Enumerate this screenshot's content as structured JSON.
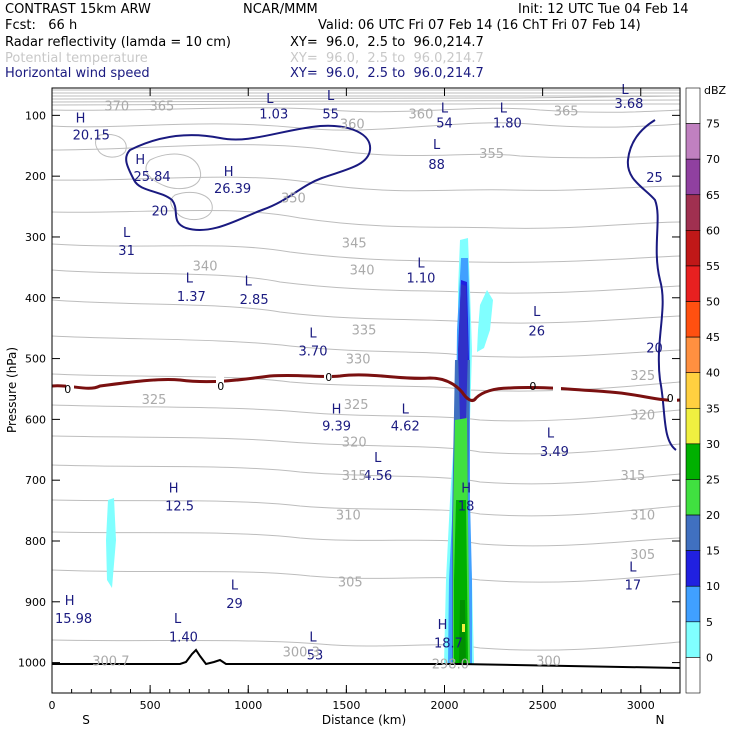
{
  "header": {
    "model": "CONTRAST 15km ARW",
    "org": "NCAR/MMM",
    "init": "Init: 12 UTC Tue 04 Feb 14",
    "fcst": "Fcst:   66 h",
    "valid": "Valid: 06 UTC Fri 07 Feb 14 (16 ChT Fri 07 Feb 14)",
    "field1": "Radar reflectivity (lamda = 10 cm)",
    "field1_xy": "XY=  96.0,  2.5 to  96.0,214.7",
    "field2": "Potential temperature",
    "field2_xy": "XY=  96.0,  2.5 to  96.0,214.7",
    "field3": "Horizontal wind speed",
    "field3_xy": "XY=  96.0,  2.5 to  96.0,214.7"
  },
  "colors": {
    "wind": "#1a1a80",
    "theta": "#aaaaaa",
    "freezing": "#7a1010",
    "terrain": "#000000"
  },
  "chart_data": {
    "type": "cross-section",
    "xlabel": "Distance (km)",
    "ylabel": "Pressure (hPa)",
    "xlim": [
      0,
      3200
    ],
    "ylim": [
      1050,
      55
    ],
    "x_ticks": [
      "0",
      "500",
      "1000",
      "1500",
      "2000",
      "2500",
      "3000"
    ],
    "y_ticks": [
      "100",
      "200",
      "300",
      "400",
      "500",
      "600",
      "700",
      "800",
      "900",
      "1000"
    ],
    "x_left": "S",
    "x_right": "N",
    "colorbar": {
      "unit": "dBZ",
      "levels": [
        "75",
        "70",
        "65",
        "60",
        "55",
        "50",
        "45",
        "40",
        "35",
        "30",
        "25",
        "20",
        "15",
        "10",
        "5",
        "0"
      ],
      "colors": [
        "#ffffff",
        "#c080c0",
        "#9040a0",
        "#a03050",
        "#c01818",
        "#e82020",
        "#ff5010",
        "#ff9040",
        "#ffd040",
        "#f0f040",
        "#00b000",
        "#40e040",
        "#4070c0",
        "#2020e0",
        "#40a0ff",
        "#80ffff",
        "#ffffff"
      ]
    },
    "wind_labels": [
      {
        "t": "H",
        "x": 145,
        "p": 112
      },
      {
        "t": "20.15",
        "x": 200,
        "p": 140
      },
      {
        "t": "L",
        "x": 1110,
        "p": 80
      },
      {
        "t": "1.03",
        "x": 1130,
        "p": 105
      },
      {
        "t": "L",
        "x": 1420,
        "p": 75
      },
      {
        "t": "55",
        "x": 1420,
        "p": 105
      },
      {
        "t": "L",
        "x": 2000,
        "p": 95
      },
      {
        "t": "54",
        "x": 2000,
        "p": 120
      },
      {
        "t": "L",
        "x": 2300,
        "p": 95
      },
      {
        "t": "1.80",
        "x": 2320,
        "p": 120
      },
      {
        "t": "L",
        "x": 2920,
        "p": 65
      },
      {
        "t": "3.68",
        "x": 2940,
        "p": 88
      },
      {
        "t": "L",
        "x": 1960,
        "p": 155
      },
      {
        "t": "88",
        "x": 1960,
        "p": 188
      },
      {
        "t": "H",
        "x": 450,
        "p": 180
      },
      {
        "t": "25.84",
        "x": 510,
        "p": 208
      },
      {
        "t": "H",
        "x": 900,
        "p": 200
      },
      {
        "t": "26.39",
        "x": 920,
        "p": 228
      },
      {
        "t": "20",
        "x": 550,
        "p": 265
      },
      {
        "t": "25",
        "x": 3070,
        "p": 210
      },
      {
        "t": "L",
        "x": 380,
        "p": 300
      },
      {
        "t": "31",
        "x": 380,
        "p": 330
      },
      {
        "t": "L",
        "x": 1880,
        "p": 350
      },
      {
        "t": "1.10",
        "x": 1880,
        "p": 375
      },
      {
        "t": "L",
        "x": 700,
        "p": 375
      },
      {
        "t": "1.37",
        "x": 710,
        "p": 405
      },
      {
        "t": "L",
        "x": 1000,
        "p": 380
      },
      {
        "t": "2.85",
        "x": 1030,
        "p": 410
      },
      {
        "t": "L",
        "x": 2470,
        "p": 430
      },
      {
        "t": "26",
        "x": 2470,
        "p": 462
      },
      {
        "t": "L",
        "x": 1330,
        "p": 465
      },
      {
        "t": "3.70",
        "x": 1330,
        "p": 495
      },
      {
        "t": "20",
        "x": 3070,
        "p": 490
      },
      {
        "t": "H",
        "x": 1450,
        "p": 590
      },
      {
        "t": "9.39",
        "x": 1450,
        "p": 618
      },
      {
        "t": "L",
        "x": 1800,
        "p": 590
      },
      {
        "t": "4.62",
        "x": 1800,
        "p": 618
      },
      {
        "t": "L",
        "x": 2540,
        "p": 630
      },
      {
        "t": "3.49",
        "x": 2560,
        "p": 660
      },
      {
        "t": "L",
        "x": 1660,
        "p": 670
      },
      {
        "t": "4.56",
        "x": 1660,
        "p": 700
      },
      {
        "t": "H",
        "x": 2110,
        "p": 720
      },
      {
        "t": "18",
        "x": 2110,
        "p": 750
      },
      {
        "t": "H",
        "x": 620,
        "p": 720
      },
      {
        "t": "12.5",
        "x": 650,
        "p": 750
      },
      {
        "t": "L",
        "x": 2960,
        "p": 850
      },
      {
        "t": "17",
        "x": 2960,
        "p": 880
      },
      {
        "t": "L",
        "x": 930,
        "p": 880
      },
      {
        "t": "29",
        "x": 930,
        "p": 910
      },
      {
        "t": "H",
        "x": 90,
        "p": 905
      },
      {
        "t": "15.98",
        "x": 110,
        "p": 935
      },
      {
        "t": "L",
        "x": 640,
        "p": 935
      },
      {
        "t": "1.40",
        "x": 670,
        "p": 965
      },
      {
        "t": "L",
        "x": 1330,
        "p": 965
      },
      {
        "t": "53",
        "x": 1340,
        "p": 995
      },
      {
        "t": "H",
        "x": 1990,
        "p": 945
      },
      {
        "t": "18.7",
        "x": 2020,
        "p": 975
      }
    ],
    "theta_labels": [
      {
        "t": "370",
        "x": 330,
        "p": 92
      },
      {
        "t": "365",
        "x": 560,
        "p": 92
      },
      {
        "t": "360",
        "x": 1530,
        "p": 122
      },
      {
        "t": "360",
        "x": 1880,
        "p": 105
      },
      {
        "t": "365",
        "x": 2620,
        "p": 100
      },
      {
        "t": "355",
        "x": 2240,
        "p": 170
      },
      {
        "t": "350",
        "x": 1230,
        "p": 243
      },
      {
        "t": "345",
        "x": 1540,
        "p": 317
      },
      {
        "t": "340",
        "x": 780,
        "p": 355
      },
      {
        "t": "340",
        "x": 1580,
        "p": 362
      },
      {
        "t": "335",
        "x": 1590,
        "p": 460
      },
      {
        "t": "330",
        "x": 1560,
        "p": 508
      },
      {
        "t": "325",
        "x": 520,
        "p": 575
      },
      {
        "t": "325",
        "x": 1550,
        "p": 583
      },
      {
        "t": "325",
        "x": 3010,
        "p": 535
      },
      {
        "t": "320",
        "x": 1540,
        "p": 645
      },
      {
        "t": "320",
        "x": 3010,
        "p": 600
      },
      {
        "t": "315",
        "x": 1540,
        "p": 700
      },
      {
        "t": "315",
        "x": 2960,
        "p": 700
      },
      {
        "t": "310",
        "x": 1510,
        "p": 765
      },
      {
        "t": "310",
        "x": 3010,
        "p": 765
      },
      {
        "t": "305",
        "x": 1520,
        "p": 875
      },
      {
        "t": "305",
        "x": 3010,
        "p": 830
      },
      {
        "t": "300",
        "x": 2530,
        "p": 1005
      },
      {
        "t": "300.3",
        "x": 1270,
        "p": 990
      },
      {
        "t": "300.7",
        "x": 300,
        "p": 1005
      },
      {
        "t": "298.0",
        "x": 2030,
        "p": 1010
      }
    ],
    "freezing_labels": [
      {
        "t": "0",
        "x": 80,
        "p": 550
      },
      {
        "t": "0",
        "x": 860,
        "p": 545
      },
      {
        "t": "0",
        "x": 1410,
        "p": 530
      },
      {
        "t": "0",
        "x": 2450,
        "p": 545
      },
      {
        "t": "0",
        "x": 3150,
        "p": 565
      }
    ]
  }
}
